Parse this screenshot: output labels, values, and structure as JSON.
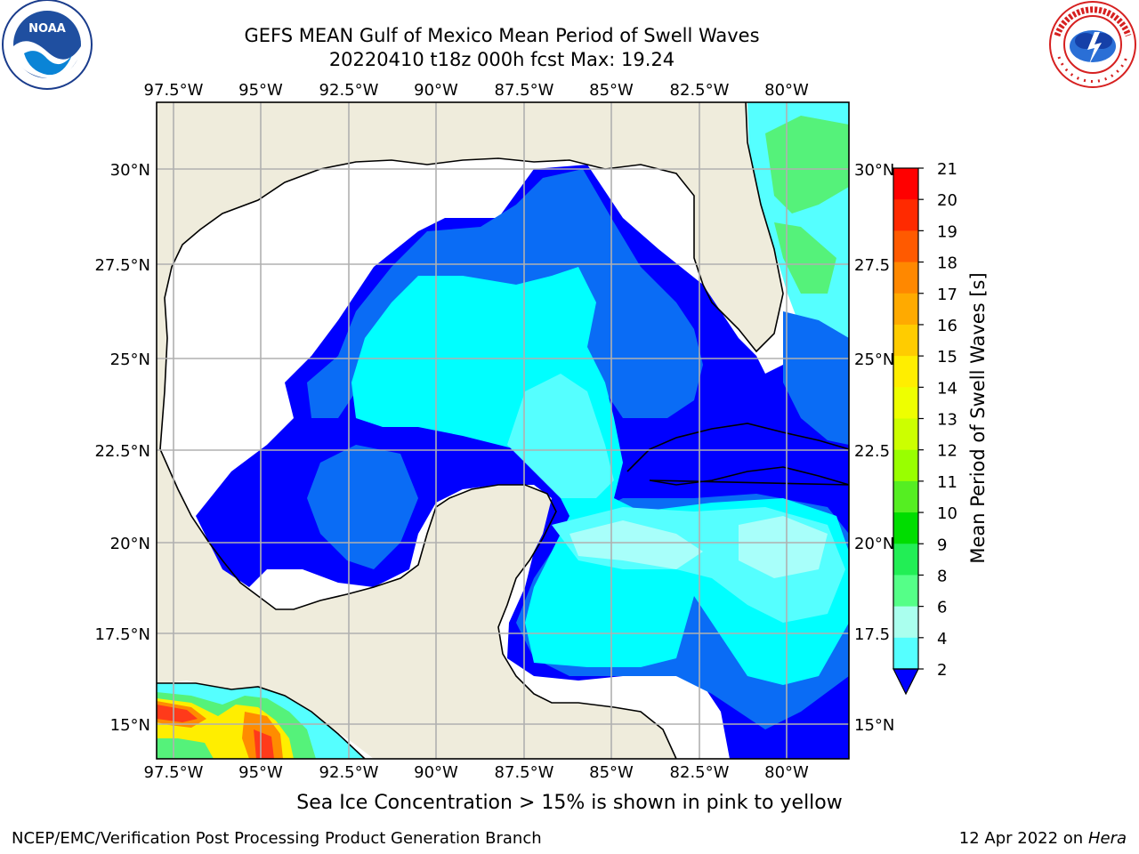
{
  "title_line1": "GEFS MEAN Gulf of Mexico Mean Period of Swell Waves",
  "title_line2": "20220410 t18z 000h fcst   Max: 19.24",
  "caption": "Sea Ice Concentration > 15% is shown in pink to yellow",
  "footer_left": "NCEP/EMC/Verification Post Processing Product Generation Branch",
  "footer_right_date": "12 Apr 2022 on",
  "footer_right_host": "Hera",
  "logos": {
    "noaa_text": "NOAA",
    "noaa_ring_text": "NATIONAL OCEANIC AND ATMOSPHERIC ADMINISTRATION · U.S. DEPARTMENT OF COMMERCE",
    "nws_ring_text": "NATIONAL WEATHER SERVICE"
  },
  "map": {
    "lon_labels": [
      "97.5°W",
      "95°W",
      "92.5°W",
      "90°W",
      "87.5°W",
      "85°W",
      "82.5°W",
      "80°W"
    ],
    "lat_labels_left": [
      "30°N",
      "27.5°N",
      "25°N",
      "22.5°N",
      "20°N",
      "17.5°N",
      "15°N"
    ],
    "lat_labels_right": [
      "30°N",
      "27.5",
      "25°N",
      "22.5",
      "20°N",
      "17.5",
      "15°N"
    ],
    "land_color": "#efecdc",
    "water_color": "#ffffff"
  },
  "colorbar": {
    "label": "Mean Period of Swell Waves [s]",
    "ticks": [
      "21",
      "20",
      "19",
      "18",
      "17",
      "16",
      "15",
      "14",
      "13",
      "12",
      "11",
      "10",
      "9",
      "8",
      "6",
      "4",
      "2"
    ],
    "colors_top_to_bottom": [
      "#ff0000",
      "#ff2a00",
      "#ff5a00",
      "#ff8800",
      "#ffaa00",
      "#ffcc00",
      "#ffee00",
      "#eeff00",
      "#ccff00",
      "#99ff00",
      "#55ee22",
      "#00dd00",
      "#22ee55",
      "#55ff88",
      "#aaffee",
      "#55ffff",
      "#00eeff",
      "#0088ff"
    ],
    "extend_color": "#0000ff"
  },
  "field_colors": {
    "dark_blue": "#0000ff",
    "mid_blue": "#0a6cf5",
    "cyan": "#00ffff",
    "light_cyan": "#55ffff",
    "pale_cyan": "#a8fffa",
    "green": "#55f27a",
    "red": "#ff3a1a",
    "orange": "#ff8c00",
    "yellow": "#ffee00"
  }
}
